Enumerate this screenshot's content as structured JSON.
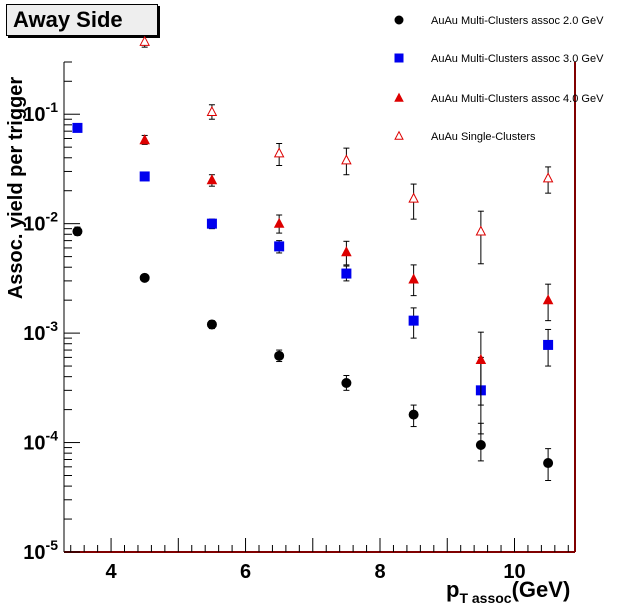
{
  "chart_data": {
    "type": "scatter",
    "title": "Away Side",
    "xlabel": "(GeV)",
    "xlabel_main": "p",
    "xlabel_sub": "T assoc",
    "ylabel": "Assoc. yield per trigger",
    "xlim": [
      3.3,
      10.9
    ],
    "ylim": [
      1e-05,
      0.3
    ],
    "yscale": "log",
    "x_ticks": [
      4,
      6,
      8,
      10
    ],
    "y_ticks": [
      {
        "value": 1e-05,
        "base": "10",
        "exp": "-5"
      },
      {
        "value": 0.0001,
        "base": "10",
        "exp": "-4"
      },
      {
        "value": 0.001,
        "base": "10",
        "exp": "-3"
      },
      {
        "value": 0.01,
        "base": "10",
        "exp": "-2"
      },
      {
        "value": 0.1,
        "base": "10",
        "exp": "-1"
      }
    ],
    "legend_position": "top-right",
    "series": [
      {
        "name": "AuAu Multi-Clusters assoc 2.0 GeV",
        "marker": "circle",
        "color": "#000000",
        "filled": true,
        "x": [
          3.5,
          4.5,
          5.5,
          6.5,
          7.5,
          8.5,
          9.5,
          10.5
        ],
        "y": [
          0.0085,
          0.0032,
          0.0012,
          0.00062,
          0.00035,
          0.00018,
          9.5e-05,
          6.5e-05
        ],
        "err_low": [
          0.0007,
          0.0002,
          0.0001,
          7e-05,
          5e-05,
          4e-05,
          2.7e-05,
          2e-05
        ],
        "err_high": [
          0.0008,
          0.0002,
          0.0001,
          8e-05,
          6e-05,
          4e-05,
          5.5e-05,
          2.3e-05
        ]
      },
      {
        "name": "AuAu Multi-Clusters assoc 3.0 GeV",
        "marker": "square",
        "color": "#0000ee",
        "filled": true,
        "x": [
          3.5,
          4.5,
          5.5,
          6.5,
          7.5,
          8.5,
          9.5,
          10.5
        ],
        "y": [
          0.075,
          0.027,
          0.01,
          0.0062,
          0.0035,
          0.0013,
          0.0003,
          0.00078
        ],
        "err_low": [
          0.004,
          0.002,
          0.001,
          0.0008,
          0.0005,
          0.0004,
          0.00018,
          0.00028
        ],
        "err_high": [
          0.004,
          0.002,
          0.001,
          0.0008,
          0.0006,
          0.0004,
          0.0003,
          0.0003
        ]
      },
      {
        "name": "AuAu Multi-Clusters assoc 4.0 GeV",
        "marker": "triangle",
        "color": "#dd0000",
        "filled": true,
        "x": [
          4.5,
          5.5,
          6.5,
          7.5,
          8.5,
          9.5,
          10.5
        ],
        "y": [
          0.058,
          0.025,
          0.01,
          0.0055,
          0.0031,
          0.00057,
          0.002
        ],
        "err_low": [
          0.005,
          0.003,
          0.0018,
          0.0013,
          0.0009,
          0.00035,
          0.0007
        ],
        "err_high": [
          0.006,
          0.003,
          0.002,
          0.0014,
          0.0011,
          0.00045,
          0.0008
        ]
      },
      {
        "name": "AuAu Single-Clusters",
        "marker": "triangle",
        "color": "#dd0000",
        "filled": false,
        "x": [
          4.5,
          5.5,
          6.5,
          7.5,
          8.5,
          9.5,
          10.5
        ],
        "y": [
          0.46,
          0.105,
          0.044,
          0.038,
          0.017,
          0.0085,
          0.026
        ],
        "err_low": [
          0.05,
          0.015,
          0.01,
          0.01,
          0.006,
          0.0042,
          0.007
        ],
        "err_high": [
          0.05,
          0.017,
          0.01,
          0.011,
          0.006,
          0.0045,
          0.007
        ]
      }
    ]
  }
}
